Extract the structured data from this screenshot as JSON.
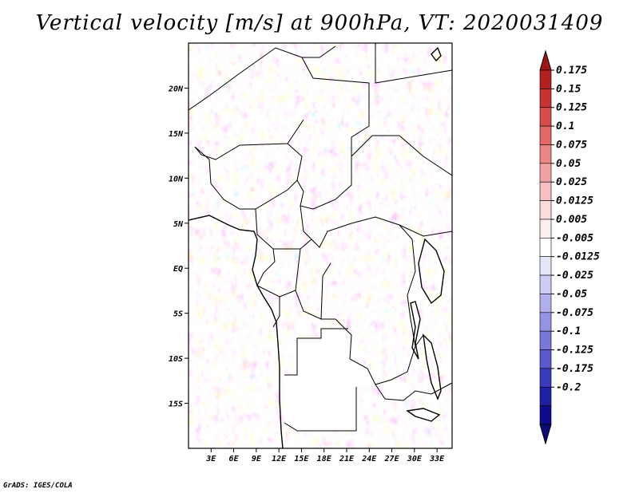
{
  "title": "Vertical velocity [m/s] at 900hPa, VT: 2020031409",
  "credit": "GrADS: IGES/COLA",
  "map": {
    "variable": "Vertical velocity",
    "units": "m/s",
    "level": "900hPa",
    "valid_time": "2020031409",
    "lon_range": [
      0,
      35
    ],
    "lat_range": [
      -20,
      25
    ],
    "x_ticks": [
      "3E",
      "6E",
      "9E",
      "12E",
      "15E",
      "18E",
      "21E",
      "24E",
      "27E",
      "30E",
      "33E"
    ],
    "x_tick_values": [
      3,
      6,
      9,
      12,
      15,
      18,
      21,
      24,
      27,
      30,
      33
    ],
    "y_ticks": [
      "20N",
      "15N",
      "10N",
      "5N",
      "EQ",
      "5S",
      "10S",
      "15S"
    ],
    "y_tick_values": [
      20,
      15,
      10,
      5,
      0,
      -5,
      -10,
      -15
    ]
  },
  "colorbar": {
    "labels": [
      "0.175",
      "0.15",
      "0.125",
      "0.1",
      "0.075",
      "0.05",
      "0.025",
      "0.0125",
      "0.005",
      "-0.005",
      "-0.0125",
      "-0.025",
      "-0.05",
      "-0.075",
      "-0.1",
      "-0.125",
      "-0.175",
      "-0.2"
    ],
    "colors": [
      "#b21f1f",
      "#c83232",
      "#d94b4b",
      "#e56767",
      "#ec8585",
      "#f2a2a2",
      "#f7c0c0",
      "#fbdcdc",
      "#fdeeee",
      "#ffffff",
      "#e6e6fa",
      "#ccccf5",
      "#b0b0ee",
      "#9494e6",
      "#7777dc",
      "#5858cf",
      "#3a3abd",
      "#2020a6",
      "#0c0c8c"
    ],
    "over_color": "#a01414",
    "under_color": "#0a0a78"
  },
  "chart_data": {
    "type": "heatmap",
    "title": "Vertical velocity [m/s] at 900hPa, VT: 2020031409",
    "xlabel": "",
    "ylabel": "",
    "xlim": [
      0,
      35
    ],
    "ylim": [
      -20,
      25
    ],
    "levels": [
      -0.2,
      -0.175,
      -0.125,
      -0.1,
      -0.075,
      -0.05,
      -0.025,
      -0.0125,
      -0.005,
      0.005,
      0.0125,
      0.025,
      0.05,
      0.075,
      0.1,
      0.125,
      0.15,
      0.175
    ],
    "description_values": "noisy small-scale field mostly within ±0.05 m/s; no data over southern Africa land box"
  }
}
